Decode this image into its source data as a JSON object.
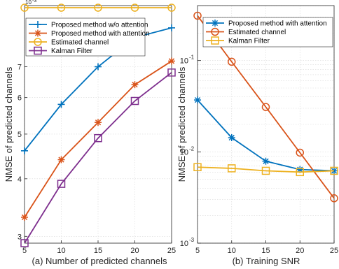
{
  "chart_data": [
    {
      "type": "line",
      "title": "",
      "caption": "(a) Number of predicted channels",
      "xlabel": "",
      "ylabel": "NMSE of predicted channels",
      "x": [
        5,
        10,
        15,
        20,
        25
      ],
      "xticks": [
        "5",
        "10",
        "15",
        "20",
        "25"
      ],
      "yscale": "log",
      "yticks": [
        "3",
        "4",
        "5",
        "6",
        "7"
      ],
      "y_multiplier": "10",
      "y_multiplier_exp": "-3",
      "ylim": [
        0.0029,
        0.0095
      ],
      "grid": true,
      "legend_position": "top-left",
      "series": [
        {
          "name": "Proposed method  w/o attention",
          "color": "#0072bd",
          "marker": "plus",
          "values": [
            0.0046,
            0.0058,
            0.007,
            0.0081,
            0.0085
          ]
        },
        {
          "name": "Proposed method  with attention",
          "color": "#d95319",
          "marker": "asterisk",
          "values": [
            0.0033,
            0.0044,
            0.0053,
            0.0064,
            0.0072
          ]
        },
        {
          "name": "Estimated channel",
          "color": "#edb120",
          "marker": "circle",
          "values": [
            0.0094,
            0.0094,
            0.0094,
            0.0094,
            0.0094
          ]
        },
        {
          "name": "Kalman Filter",
          "color": "#7e2f8e",
          "marker": "square",
          "values": [
            0.0029,
            0.0039,
            0.0049,
            0.0059,
            0.0068
          ]
        }
      ]
    },
    {
      "type": "line",
      "title": "",
      "caption": "(b) Training SNR",
      "xlabel": "",
      "ylabel": "NMSE of predicted channels",
      "x": [
        5,
        10,
        15,
        20,
        25
      ],
      "xticks": [
        "5",
        "10",
        "15",
        "20",
        "25"
      ],
      "yscale": "log",
      "yticks": [
        {
          "base": "10",
          "exp": "-1",
          "value": 0.1
        },
        {
          "base": "10",
          "exp": "-2",
          "value": 0.01
        },
        {
          "base": "10",
          "exp": "-3",
          "value": 0.001
        }
      ],
      "ylim": [
        0.001,
        0.4
      ],
      "grid": true,
      "legend_position": "top-right",
      "series": [
        {
          "name": "Proposed method  with attention",
          "color": "#0072bd",
          "marker": "asterisk",
          "values": [
            0.037,
            0.0143,
            0.0079,
            0.0064,
            0.0062
          ]
        },
        {
          "name": "Estimated channel",
          "color": "#d95319",
          "marker": "circle",
          "values": [
            0.31,
            0.097,
            0.031,
            0.0098,
            0.0031
          ]
        },
        {
          "name": "Kalman Filter",
          "color": "#edb120",
          "marker": "square",
          "values": [
            0.0068,
            0.0066,
            0.0062,
            0.006,
            0.0062
          ]
        }
      ]
    }
  ]
}
